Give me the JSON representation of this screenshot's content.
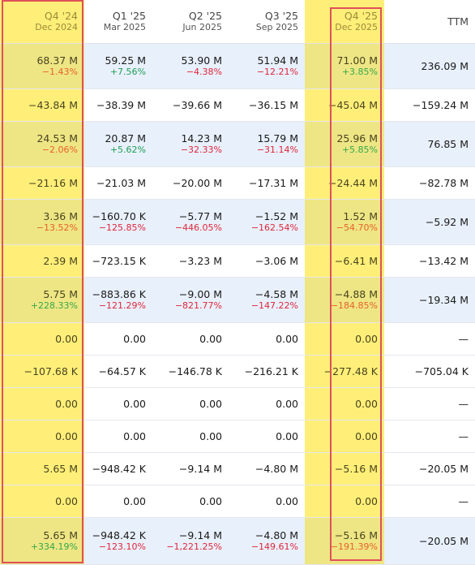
{
  "columns": [
    {
      "title": "Q4 '24",
      "sub": "Dec 2024"
    },
    {
      "title": "Q1 '25",
      "sub": "Mar 2025"
    },
    {
      "title": "Q2 '25",
      "sub": "Jun 2025"
    },
    {
      "title": "Q3 '25",
      "sub": "Sep 2025"
    },
    {
      "title": "Q4 '25",
      "sub": "Dec 2025"
    },
    {
      "title": "TTM",
      "sub": ""
    }
  ],
  "rows": [
    {
      "highlight": true,
      "cells": [
        {
          "v": "68.37 M",
          "p": "−1.43%",
          "dir": "down"
        },
        {
          "v": "59.25 M",
          "p": "+7.56%",
          "dir": "up"
        },
        {
          "v": "53.90 M",
          "p": "−4.38%",
          "dir": "down"
        },
        {
          "v": "51.94 M",
          "p": "−12.21%",
          "dir": "down"
        },
        {
          "v": "71.00 M",
          "p": "+3.85%",
          "dir": "up"
        },
        {
          "v": "236.09 M",
          "p": "",
          "dir": ""
        }
      ]
    },
    {
      "highlight": false,
      "cells": [
        {
          "v": "−43.84 M",
          "p": "",
          "dir": ""
        },
        {
          "v": "−38.39 M",
          "p": "",
          "dir": ""
        },
        {
          "v": "−39.66 M",
          "p": "",
          "dir": ""
        },
        {
          "v": "−36.15 M",
          "p": "",
          "dir": ""
        },
        {
          "v": "−45.04 M",
          "p": "",
          "dir": ""
        },
        {
          "v": "−159.24 M",
          "p": "",
          "dir": ""
        }
      ]
    },
    {
      "highlight": true,
      "cells": [
        {
          "v": "24.53 M",
          "p": "−2.06%",
          "dir": "down"
        },
        {
          "v": "20.87 M",
          "p": "+5.62%",
          "dir": "up"
        },
        {
          "v": "14.23 M",
          "p": "−32.33%",
          "dir": "down"
        },
        {
          "v": "15.79 M",
          "p": "−31.14%",
          "dir": "down"
        },
        {
          "v": "25.96 M",
          "p": "+5.85%",
          "dir": "up"
        },
        {
          "v": "76.85 M",
          "p": "",
          "dir": ""
        }
      ]
    },
    {
      "highlight": false,
      "cells": [
        {
          "v": "−21.16 M",
          "p": "",
          "dir": ""
        },
        {
          "v": "−21.03 M",
          "p": "",
          "dir": ""
        },
        {
          "v": "−20.00 M",
          "p": "",
          "dir": ""
        },
        {
          "v": "−17.31 M",
          "p": "",
          "dir": ""
        },
        {
          "v": "−24.44 M",
          "p": "",
          "dir": ""
        },
        {
          "v": "−82.78 M",
          "p": "",
          "dir": ""
        }
      ]
    },
    {
      "highlight": true,
      "cells": [
        {
          "v": "3.36 M",
          "p": "−13.52%",
          "dir": "down"
        },
        {
          "v": "−160.70 K",
          "p": "−125.85%",
          "dir": "down"
        },
        {
          "v": "−5.77 M",
          "p": "−446.05%",
          "dir": "down"
        },
        {
          "v": "−1.52 M",
          "p": "−162.54%",
          "dir": "down"
        },
        {
          "v": "1.52 M",
          "p": "−54.70%",
          "dir": "down"
        },
        {
          "v": "−5.92 M",
          "p": "",
          "dir": ""
        }
      ]
    },
    {
      "highlight": false,
      "cells": [
        {
          "v": "2.39 M",
          "p": "",
          "dir": ""
        },
        {
          "v": "−723.15 K",
          "p": "",
          "dir": ""
        },
        {
          "v": "−3.23 M",
          "p": "",
          "dir": ""
        },
        {
          "v": "−3.06 M",
          "p": "",
          "dir": ""
        },
        {
          "v": "−6.41 M",
          "p": "",
          "dir": ""
        },
        {
          "v": "−13.42 M",
          "p": "",
          "dir": ""
        }
      ]
    },
    {
      "highlight": true,
      "cells": [
        {
          "v": "5.75 M",
          "p": "+228.33%",
          "dir": "up"
        },
        {
          "v": "−883.86 K",
          "p": "−121.29%",
          "dir": "down"
        },
        {
          "v": "−9.00 M",
          "p": "−821.77%",
          "dir": "down"
        },
        {
          "v": "−4.58 M",
          "p": "−147.22%",
          "dir": "down"
        },
        {
          "v": "−4.88 M",
          "p": "−184.85%",
          "dir": "down"
        },
        {
          "v": "−19.34 M",
          "p": "",
          "dir": ""
        }
      ]
    },
    {
      "highlight": false,
      "cells": [
        {
          "v": "0.00",
          "p": "",
          "dir": ""
        },
        {
          "v": "0.00",
          "p": "",
          "dir": ""
        },
        {
          "v": "0.00",
          "p": "",
          "dir": ""
        },
        {
          "v": "0.00",
          "p": "",
          "dir": ""
        },
        {
          "v": "0.00",
          "p": "",
          "dir": ""
        },
        {
          "v": "—",
          "p": "",
          "dir": ""
        }
      ]
    },
    {
      "highlight": false,
      "cells": [
        {
          "v": "−107.68 K",
          "p": "",
          "dir": ""
        },
        {
          "v": "−64.57 K",
          "p": "",
          "dir": ""
        },
        {
          "v": "−146.78 K",
          "p": "",
          "dir": ""
        },
        {
          "v": "−216.21 K",
          "p": "",
          "dir": ""
        },
        {
          "v": "−277.48 K",
          "p": "",
          "dir": ""
        },
        {
          "v": "−705.04 K",
          "p": "",
          "dir": ""
        }
      ]
    },
    {
      "highlight": false,
      "cells": [
        {
          "v": "0.00",
          "p": "",
          "dir": ""
        },
        {
          "v": "0.00",
          "p": "",
          "dir": ""
        },
        {
          "v": "0.00",
          "p": "",
          "dir": ""
        },
        {
          "v": "0.00",
          "p": "",
          "dir": ""
        },
        {
          "v": "0.00",
          "p": "",
          "dir": ""
        },
        {
          "v": "—",
          "p": "",
          "dir": ""
        }
      ]
    },
    {
      "highlight": false,
      "cells": [
        {
          "v": "0.00",
          "p": "",
          "dir": ""
        },
        {
          "v": "0.00",
          "p": "",
          "dir": ""
        },
        {
          "v": "0.00",
          "p": "",
          "dir": ""
        },
        {
          "v": "0.00",
          "p": "",
          "dir": ""
        },
        {
          "v": "0.00",
          "p": "",
          "dir": ""
        },
        {
          "v": "—",
          "p": "",
          "dir": ""
        }
      ]
    },
    {
      "highlight": false,
      "cells": [
        {
          "v": "5.65 M",
          "p": "",
          "dir": ""
        },
        {
          "v": "−948.42 K",
          "p": "",
          "dir": ""
        },
        {
          "v": "−9.14 M",
          "p": "",
          "dir": ""
        },
        {
          "v": "−4.80 M",
          "p": "",
          "dir": ""
        },
        {
          "v": "−5.16 M",
          "p": "",
          "dir": ""
        },
        {
          "v": "−20.05 M",
          "p": "",
          "dir": ""
        }
      ]
    },
    {
      "highlight": false,
      "cells": [
        {
          "v": "0.00",
          "p": "",
          "dir": ""
        },
        {
          "v": "0.00",
          "p": "",
          "dir": ""
        },
        {
          "v": "0.00",
          "p": "",
          "dir": ""
        },
        {
          "v": "0.00",
          "p": "",
          "dir": ""
        },
        {
          "v": "0.00",
          "p": "",
          "dir": ""
        },
        {
          "v": "—",
          "p": "",
          "dir": ""
        }
      ]
    },
    {
      "highlight": true,
      "cells": [
        {
          "v": "5.65 M",
          "p": "+334.19%",
          "dir": "up"
        },
        {
          "v": "−948.42 K",
          "p": "−123.10%",
          "dir": "down"
        },
        {
          "v": "−9.14 M",
          "p": "−1,221.25%",
          "dir": "down"
        },
        {
          "v": "−4.80 M",
          "p": "−149.61%",
          "dir": "down"
        },
        {
          "v": "−5.16 M",
          "p": "−191.39%",
          "dir": "down"
        },
        {
          "v": "−20.05 M",
          "p": "",
          "dir": ""
        }
      ]
    }
  ]
}
